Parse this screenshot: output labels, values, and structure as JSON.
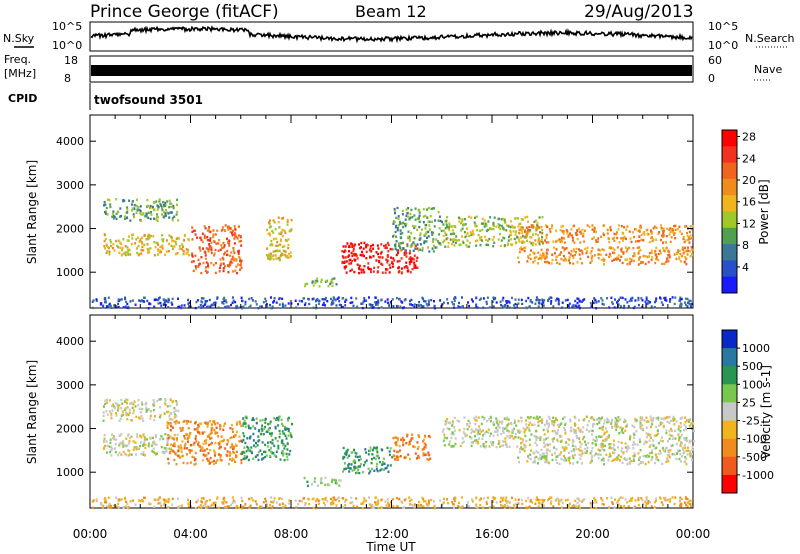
{
  "header": {
    "station": "Prince George (fitACF)",
    "beam": "Beam 12",
    "date": "29/Aug/2013"
  },
  "top_panels": {
    "nsky_label": "N.Sky",
    "nsearch_label": "N.Search",
    "nsky_ticks": [
      "10^5",
      "10^0"
    ],
    "nsearch_ticks": [
      "10^5",
      "10^0"
    ],
    "freq_label_1": "Freq.",
    "freq_label_2": "[MHz]",
    "freq_ticks": [
      "18",
      "8"
    ],
    "nave_label": "Nave",
    "nave_ticks": [
      "60",
      "0"
    ],
    "cpid_label": "CPID",
    "cpid_text": "twofsound 3501"
  },
  "chart_data": [
    {
      "type": "heatmap",
      "name": "power",
      "ylabel": "Slant Range [km]",
      "ylim": [
        180,
        4600
      ],
      "yticks": [
        1000,
        2000,
        3000,
        4000
      ],
      "xlim": [
        0,
        24
      ],
      "colorbar": {
        "label": "Power [dB]",
        "ticks": [
          "4",
          "8",
          "12",
          "16",
          "20",
          "24",
          "28"
        ],
        "colors": [
          "#1a1aff",
          "#2850c8",
          "#3c7896",
          "#50a050",
          "#a0c828",
          "#f0b41e",
          "#f08c1e",
          "#f0641e",
          "#f0321e",
          "#ff0000"
        ]
      },
      "bands": [
        {
          "t0": 0.5,
          "t1": 3.5,
          "r0": 2200,
          "r1": 2700,
          "v": 11
        },
        {
          "t0": 0.5,
          "t1": 4.0,
          "r0": 1400,
          "r1": 1900,
          "v": 16
        },
        {
          "t0": 4.0,
          "t1": 6.0,
          "r0": 1000,
          "r1": 2100,
          "v": 21
        },
        {
          "t0": 7.0,
          "t1": 8.0,
          "r0": 1300,
          "r1": 2300,
          "v": 17
        },
        {
          "t0": 8.5,
          "t1": 9.8,
          "r0": 700,
          "r1": 900,
          "v": 12
        },
        {
          "t0": 10.0,
          "t1": 13.0,
          "r0": 1000,
          "r1": 1700,
          "v": 27
        },
        {
          "t0": 12.0,
          "t1": 14.0,
          "r0": 1500,
          "r1": 2500,
          "v": 11
        },
        {
          "t0": 14.0,
          "t1": 18.0,
          "r0": 1600,
          "r1": 2300,
          "v": 13
        },
        {
          "t0": 17.0,
          "t1": 24.0,
          "r0": 1700,
          "r1": 2100,
          "v": 20
        },
        {
          "t0": 17.0,
          "t1": 24.0,
          "r0": 1200,
          "r1": 1600,
          "v": 19
        },
        {
          "t0": 0.0,
          "t1": 24.0,
          "r0": 200,
          "r1": 450,
          "v": 6
        }
      ]
    },
    {
      "type": "heatmap",
      "name": "velocity",
      "ylabel": "Slant Range [km]",
      "xlabel": "Time UT",
      "ylim": [
        180,
        4600
      ],
      "yticks": [
        1000,
        2000,
        3000,
        4000
      ],
      "xlim": [
        0,
        24
      ],
      "xticks": [
        "00:00",
        "04:00",
        "08:00",
        "12:00",
        "16:00",
        "20:00",
        "00:00"
      ],
      "colorbar": {
        "label": "Velocity [m s-1]",
        "ticks": [
          "1000",
          "500",
          "100",
          "25",
          "-25",
          "-100",
          "-500",
          "-1000"
        ],
        "colors": [
          "#0a28c8",
          "#2878a0",
          "#289650",
          "#78c850",
          "#c8c8c8",
          "#f0b41e",
          "#f08c1e",
          "#f05a1e",
          "#ff0000"
        ]
      },
      "bands": [
        {
          "t0": 0.5,
          "t1": 3.5,
          "r0": 2200,
          "r1": 2700,
          "c": 4
        },
        {
          "t0": 0.5,
          "t1": 3.5,
          "r0": 1400,
          "r1": 1900,
          "c": 4
        },
        {
          "t0": 3.0,
          "t1": 6.0,
          "r0": 1200,
          "r1": 2200,
          "c": 6
        },
        {
          "t0": 6.0,
          "t1": 8.0,
          "r0": 1300,
          "r1": 2300,
          "c": 2
        },
        {
          "t0": 8.5,
          "t1": 10.0,
          "r0": 700,
          "r1": 900,
          "c": 3
        },
        {
          "t0": 10.0,
          "t1": 12.0,
          "r0": 1000,
          "r1": 1600,
          "c": 2
        },
        {
          "t0": 12.0,
          "t1": 13.5,
          "r0": 1300,
          "r1": 1900,
          "c": 6
        },
        {
          "t0": 14.0,
          "t1": 24.0,
          "r0": 1600,
          "r1": 2300,
          "c": 4
        },
        {
          "t0": 17.0,
          "t1": 24.0,
          "r0": 1200,
          "r1": 1600,
          "c": 4
        },
        {
          "t0": 0.0,
          "t1": 24.0,
          "r0": 200,
          "r1": 450,
          "c": 5
        }
      ]
    }
  ]
}
